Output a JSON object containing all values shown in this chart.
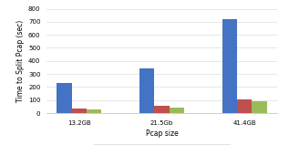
{
  "categories": [
    "13.2GB",
    "21.5Gb",
    "41.4GB"
  ],
  "series": {
    "Real Time": [
      230,
      345,
      720
    ],
    "User Time": [
      35,
      55,
      105
    ],
    "System Time": [
      30,
      45,
      90
    ]
  },
  "colors": {
    "Real Time": "#4472C4",
    "User Time": "#C0504D",
    "System Time": "#9BBB59"
  },
  "xlabel": "Pcap size",
  "ylabel": "Time to Split Pcap (sec)",
  "ylim": [
    0,
    800
  ],
  "yticks": [
    0,
    100,
    200,
    300,
    400,
    500,
    600,
    700,
    800
  ],
  "background_color": "#FFFFFF",
  "grid_color": "#DDDDDD",
  "axis_fontsize": 5.5,
  "tick_fontsize": 5.0,
  "legend_fontsize": 5.0,
  "bar_width": 0.18
}
